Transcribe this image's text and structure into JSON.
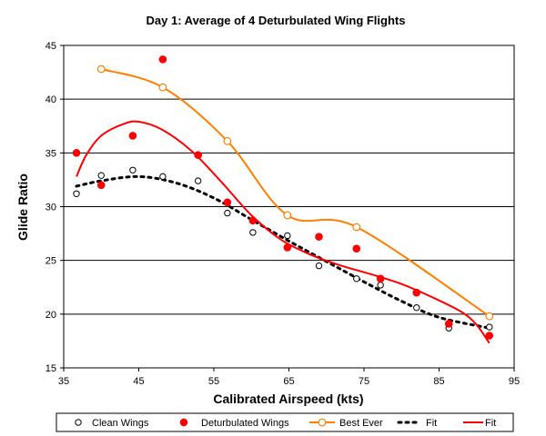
{
  "chart_data": {
    "type": "scatter",
    "title": "Day 1: Average of 4 Deturbulated Wing Flights",
    "xlabel": "Calibrated Airspeed (kts)",
    "ylabel": "Glide Ratio",
    "xlim": [
      35,
      95
    ],
    "ylim": [
      15,
      45
    ],
    "xticks": [
      35,
      45,
      55,
      65,
      75,
      85,
      95
    ],
    "yticks": [
      15,
      20,
      25,
      30,
      35,
      40,
      45
    ],
    "grid": "horizontal",
    "legend_position": "bottom",
    "series": [
      {
        "name": "Clean Wings",
        "kind": "scatter",
        "marker": "open-circle",
        "color": "#000000",
        "points": [
          [
            36.7,
            31.2
          ],
          [
            40,
            32.9
          ],
          [
            44.2,
            33.4
          ],
          [
            48.2,
            32.8
          ],
          [
            52.9,
            32.4
          ],
          [
            56.8,
            29.4
          ],
          [
            60.2,
            27.6
          ],
          [
            64.8,
            27.3
          ],
          [
            69,
            24.5
          ],
          [
            74,
            23.3
          ],
          [
            77.2,
            22.7
          ],
          [
            82,
            20.6
          ],
          [
            86.3,
            18.7
          ],
          [
            91.7,
            18.8
          ]
        ]
      },
      {
        "name": "Deturbulated Wings",
        "kind": "scatter",
        "marker": "filled-circle",
        "color": "#ff0000",
        "points": [
          [
            36.7,
            35
          ],
          [
            40,
            32
          ],
          [
            44.2,
            36.6
          ],
          [
            48.2,
            43.7
          ],
          [
            52.9,
            34.8
          ],
          [
            56.8,
            30.4
          ],
          [
            60.2,
            28.7
          ],
          [
            64.8,
            26.2
          ],
          [
            69,
            27.2
          ],
          [
            74,
            26.1
          ],
          [
            77.2,
            23.3
          ],
          [
            82,
            22
          ],
          [
            86.3,
            19.1
          ],
          [
            91.7,
            18
          ]
        ]
      },
      {
        "name": "Best Ever",
        "kind": "line-marker",
        "marker": "open-circle",
        "color": "#ff8000",
        "points": [
          [
            40,
            42.8
          ],
          [
            48.2,
            41.1
          ],
          [
            56.8,
            36.1
          ],
          [
            64.8,
            29.2
          ],
          [
            74,
            28.1
          ],
          [
            91.7,
            19.8
          ]
        ]
      },
      {
        "name": "Fit",
        "kind": "fit-dashed",
        "color": "#000000",
        "points": [
          [
            36.7,
            31.9
          ],
          [
            40,
            32.4
          ],
          [
            45,
            32.8
          ],
          [
            50,
            32.2
          ],
          [
            55,
            30.8
          ],
          [
            60,
            28.8
          ],
          [
            65,
            26.8
          ],
          [
            70,
            24.9
          ],
          [
            75,
            23
          ],
          [
            80,
            21.2
          ],
          [
            85,
            19.7
          ],
          [
            91.7,
            18.7
          ]
        ]
      },
      {
        "name": "Fit",
        "kind": "fit-solid",
        "color": "#ff0000",
        "points": [
          [
            36.7,
            32.8
          ],
          [
            38,
            34.8
          ],
          [
            40,
            36.6
          ],
          [
            43,
            37.7
          ],
          [
            45,
            37.9
          ],
          [
            48,
            37.2
          ],
          [
            52,
            35.2
          ],
          [
            56,
            32.3
          ],
          [
            60,
            29.2
          ],
          [
            64,
            26.9
          ],
          [
            68,
            25.5
          ],
          [
            72,
            24.5
          ],
          [
            76,
            23.7
          ],
          [
            80,
            22.8
          ],
          [
            84,
            21.6
          ],
          [
            88,
            20.2
          ],
          [
            90,
            19
          ],
          [
            91.7,
            17.3
          ]
        ]
      }
    ]
  }
}
